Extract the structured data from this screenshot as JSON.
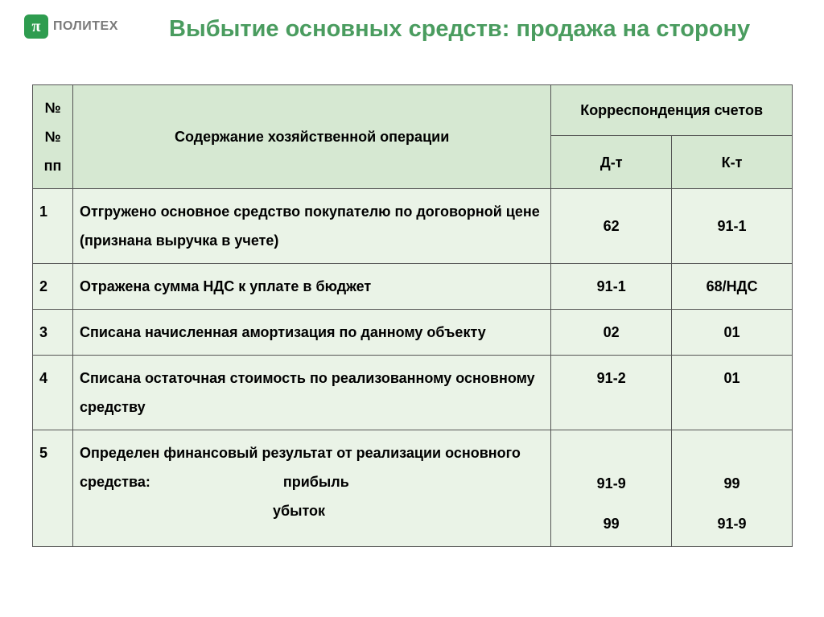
{
  "logo": {
    "symbol": "π",
    "text": "ПОЛИТЕХ"
  },
  "title": "Выбытие основных средств: продажа на сторону",
  "table": {
    "header": {
      "num": "№\n№\nпп",
      "desc": "Содержание хозяйственной операции",
      "corr": "Корреспонденция счетов",
      "dt": "Д-т",
      "kt": "К-т"
    },
    "rows": [
      {
        "n": "1",
        "desc": "Отгружено основное средство покупателю по договорной цене  (признана  выручка в учете)",
        "dt": "62",
        "kt": "91-1"
      },
      {
        "n": "2",
        "desc": "Отражена сумма НДС к уплате в бюджет",
        "dt": "91-1",
        "kt": "68/НДС"
      },
      {
        "n": "3",
        "desc": "Списана начисленная амортизация по данному объекту",
        "dt": "02",
        "kt": "01"
      },
      {
        "n": "4",
        "desc": " Списана  остаточная стоимость по реализованному основному средству",
        "dt": "91-2",
        "kt": "01"
      },
      {
        "n": "5",
        "desc_main": " Определен финансовый результат от реализации основного средства:",
        "desc_profit": "прибыль",
        "desc_loss": "убыток",
        "dt1": "91-9",
        "kt1": "99",
        "dt2": "99",
        "kt2": "91-9"
      }
    ]
  },
  "style": {
    "header_bg": "#d6e8d2",
    "body_bg": "#eaf3e7",
    "border_color": "#555555",
    "title_color": "#4a9c5f",
    "logo_bg": "#2e9c4f",
    "font_size_title": 29,
    "font_size_cell": 18
  }
}
